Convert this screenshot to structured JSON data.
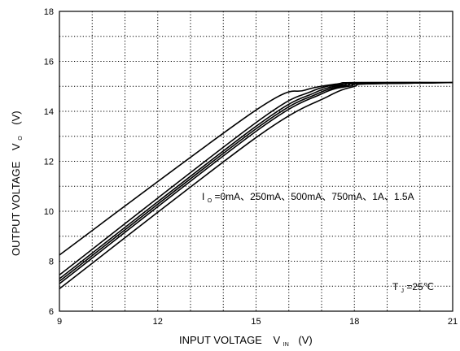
{
  "chart_data": {
    "type": "line",
    "xlabel": "INPUT VOLTAGE",
    "xlabel_symbol": "V",
    "xlabel_subscript": "IN",
    "xlabel_unit": "(V)",
    "ylabel": "OUTPUT VOLTAGE",
    "ylabel_symbol": "V",
    "ylabel_subscript": "O",
    "ylabel_unit": "(V)",
    "xlim": [
      9,
      21
    ],
    "ylim": [
      6,
      18
    ],
    "x_ticks": [
      9,
      12,
      15,
      18,
      21
    ],
    "y_ticks": [
      6,
      8,
      10,
      12,
      14,
      16,
      18
    ],
    "grid": true,
    "grid_style": "dotted",
    "annotation_load": {
      "symbol": "I",
      "subscript": "O",
      "text": "=0mA、250mA、500mA、750mA、1A、1.5A"
    },
    "annotation_temp": {
      "symbol": "T",
      "subscript": "J",
      "text": "=25℃"
    },
    "series": [
      {
        "x": [
          9,
          15.0,
          16.5,
          17.5,
          18.0,
          21
        ],
        "y": [
          8.25,
          14.05,
          14.85,
          15.1,
          15.15,
          15.15
        ]
      },
      {
        "x": [
          9,
          15.0,
          16.7,
          17.6,
          18.0,
          21
        ],
        "y": [
          7.45,
          13.55,
          14.8,
          15.08,
          15.15,
          15.15
        ]
      },
      {
        "x": [
          9,
          15.0,
          16.8,
          17.7,
          18.0,
          21
        ],
        "y": [
          7.3,
          13.4,
          14.75,
          15.06,
          15.12,
          15.15
        ]
      },
      {
        "x": [
          9,
          15.0,
          16.9,
          17.8,
          18.1,
          21
        ],
        "y": [
          7.2,
          13.3,
          14.72,
          15.04,
          15.1,
          15.15
        ]
      },
      {
        "x": [
          9,
          15.0,
          17.0,
          17.9,
          18.2,
          21
        ],
        "y": [
          7.1,
          13.2,
          14.7,
          15.02,
          15.1,
          15.15
        ]
      },
      {
        "x": [
          9,
          15.0,
          17.2,
          18.0,
          18.4,
          21
        ],
        "y": [
          6.9,
          12.95,
          14.6,
          15.0,
          15.1,
          15.15
        ]
      }
    ]
  }
}
